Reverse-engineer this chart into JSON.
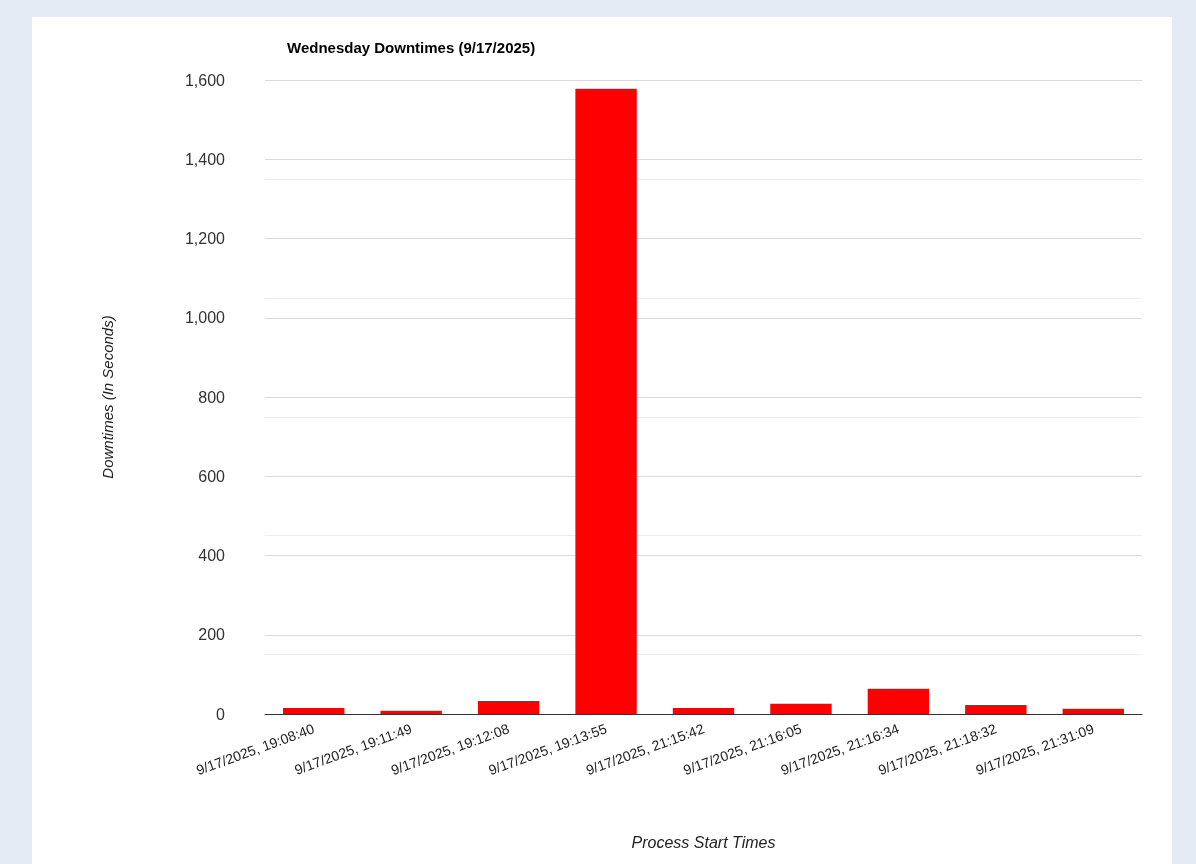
{
  "chart_data": {
    "type": "bar",
    "title": "Wednesday Downtimes (9/17/2025)",
    "xlabel": "Process Start Times",
    "ylabel": "Downtimes (In Seconds)",
    "categories": [
      "9/17/2025, 19:08:40",
      "9/17/2025, 19:11:49",
      "9/17/2025, 19:12:08",
      "9/17/2025, 19:13:55",
      "9/17/2025, 21:15:42",
      "9/17/2025, 21:16:05",
      "9/17/2025, 21:16:34",
      "9/17/2025, 21:18:32",
      "9/17/2025, 21:31:09"
    ],
    "values": [
      15,
      8,
      33,
      1578,
      15,
      26,
      64,
      23,
      13
    ],
    "color": "#ff0000",
    "ylim": [
      0,
      1600
    ],
    "yticks": [
      {
        "value": 0,
        "label": "0"
      },
      {
        "value": 200,
        "label": "200"
      },
      {
        "value": 400,
        "label": "400"
      },
      {
        "value": 600,
        "label": "600"
      },
      {
        "value": 800,
        "label": "800"
      },
      {
        "value": 1000,
        "label": "1,000"
      },
      {
        "value": 1200,
        "label": "1,200"
      },
      {
        "value": 1400,
        "label": "1,400"
      },
      {
        "value": 1600,
        "label": "1,600"
      }
    ],
    "grid": "y"
  }
}
